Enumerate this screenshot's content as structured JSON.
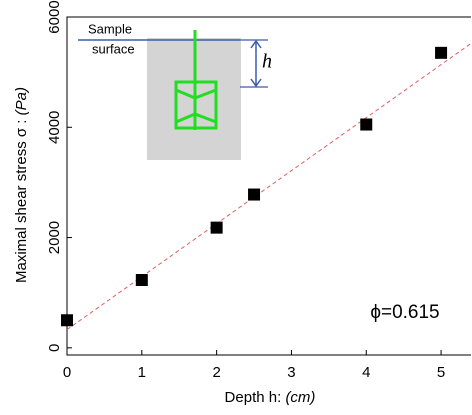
{
  "chart_data": {
    "type": "scatter",
    "xlabel": "Depth h:",
    "xlabel_unit": "(cm)",
    "ylabel": "Maximal shear stress σ : ",
    "ylabel_unit": "(Pa)",
    "x": [
      0,
      1,
      2,
      2.5,
      4,
      5
    ],
    "values": [
      500,
      1230,
      2180,
      2780,
      4050,
      5350
    ],
    "color": "#000000",
    "fit_line": {
      "x": [
        0,
        5.4
      ],
      "values": [
        330,
        5520
      ],
      "color": "#e06060"
    },
    "annotation": "ϕ=0.615",
    "xlim": [
      0,
      5.4
    ],
    "xticks": [
      0,
      1,
      2,
      3,
      4,
      5
    ],
    "ylim": [
      -130,
      6000
    ],
    "yticks": [
      0,
      2000,
      4000,
      6000
    ],
    "inset": {
      "labels": [
        "Sample",
        "surface"
      ],
      "dimension": "h"
    }
  }
}
